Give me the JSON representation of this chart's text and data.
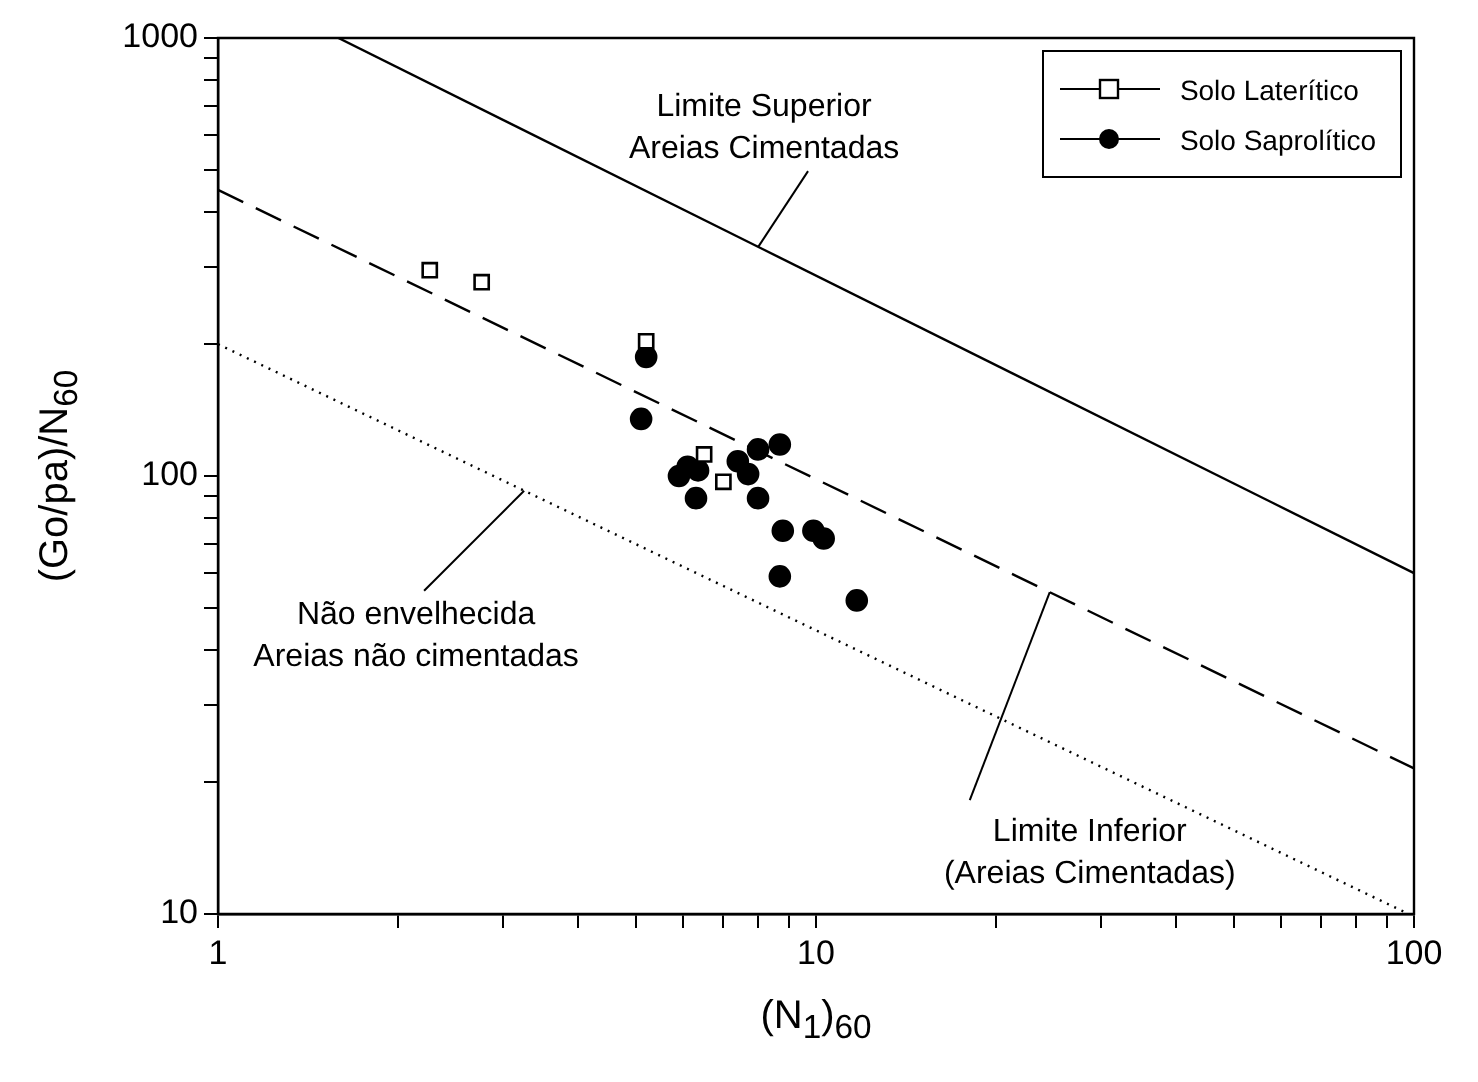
{
  "chart_data": {
    "type": "scatter",
    "xlabel": "(N$_{1}$)$_{60}$",
    "ylabel": "(Go/pa)/N$_{60}$",
    "log": "xy",
    "grid": false,
    "legend": "top right",
    "xlim": [
      1,
      100
    ],
    "ylim": [
      10,
      1000
    ],
    "xticks": [
      1,
      {
        "value": 2,
        "label": null
      },
      {
        "value": 3,
        "label": null
      },
      {
        "value": 4,
        "label": null
      },
      {
        "value": 5,
        "label": null
      },
      {
        "value": 6,
        "label": null
      },
      {
        "value": 7,
        "label": null
      },
      {
        "value": 8,
        "label": null
      },
      {
        "value": 9,
        "label": null
      },
      10,
      {
        "value": 20,
        "label": null
      },
      {
        "value": 30,
        "label": null
      },
      {
        "value": 40,
        "label": null
      },
      {
        "value": 50,
        "label": null
      },
      {
        "value": 60,
        "label": null
      },
      {
        "value": 70,
        "label": null
      },
      {
        "value": 80,
        "label": null
      },
      {
        "value": 90,
        "label": null
      },
      100
    ],
    "yticks": [
      10,
      {
        "value": 20,
        "label": null
      },
      {
        "value": 30,
        "label": null
      },
      {
        "value": 40,
        "label": null
      },
      {
        "value": 50,
        "label": null
      },
      {
        "value": 60,
        "label": null
      },
      {
        "value": 70,
        "label": null
      },
      {
        "value": 80,
        "label": null
      },
      {
        "value": 90,
        "label": null
      },
      100,
      {
        "value": 200,
        "label": null
      },
      {
        "value": 300,
        "label": null
      },
      {
        "value": 400,
        "label": null
      },
      {
        "value": 500,
        "label": null
      },
      {
        "value": 600,
        "label": null
      },
      {
        "value": 700,
        "label": null
      },
      {
        "value": 800,
        "label": null
      },
      {
        "value": 900,
        "label": null
      },
      1000
    ],
    "series": [
      {
        "type": "line",
        "color": "#000000",
        "line_style": "solid",
        "marker": "none",
        "x": [
          1.59,
          100
        ],
        "values": [
          1000,
          60
        ]
      },
      {
        "type": "line",
        "color": "#000000",
        "line_style": "dashed",
        "marker": "none",
        "x": [
          1,
          100
        ],
        "values": [
          450,
          21.5
        ]
      },
      {
        "type": "line",
        "color": "#000000",
        "line_style": "dotted",
        "marker": "none",
        "x": [
          1,
          98
        ],
        "values": [
          200,
          10
        ]
      },
      {
        "type": "scatter",
        "name": "Solo Laterítico",
        "color": "#000000",
        "marker": "square",
        "x": [
          2.26,
          2.76,
          5.2,
          6.5,
          7.0
        ],
        "values": [
          295,
          277,
          203,
          112,
          97
        ]
      },
      {
        "type": "scatter",
        "name": "Solo Saprolítico",
        "color": "#000000",
        "marker": "circle",
        "x": [
          5.2,
          5.1,
          5.9,
          6.1,
          6.35,
          6.3,
          7.4,
          7.7,
          8.0,
          8.7,
          8.0,
          8.8,
          9.9,
          10.3,
          8.7,
          11.7
        ],
        "values": [
          187,
          135,
          100,
          105,
          103,
          89,
          108,
          101,
          115,
          118,
          89,
          75,
          75,
          72,
          59,
          52
        ]
      }
    ],
    "annotations": [
      {
        "text": "Limite Superior\nAreias Cimentadas",
        "x": 8,
        "y": 333
      },
      {
        "text": "Não envelhecida\nAreias não cimentadas",
        "x": 3.25,
        "y": 92.5
      },
      {
        "text": "Limite Inferior\n(Areias Cimentadas)",
        "x": 24.6,
        "y": 54.3
      }
    ]
  }
}
